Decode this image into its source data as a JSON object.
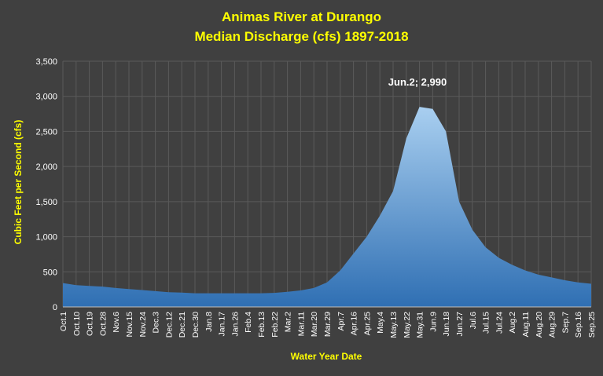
{
  "chart_data": {
    "type": "area",
    "title": "Animas River at Durango",
    "subtitle": "Median Discharge (cfs) 1897-2018",
    "xlabel": "Water Year Date",
    "ylabel": "Cubic Feet per Second (cfs)",
    "ylim": [
      0,
      3500
    ],
    "yticks": [
      "0",
      "500",
      "1,000",
      "1,500",
      "2,000",
      "2,500",
      "3,000",
      "3,500"
    ],
    "ytick_values": [
      0,
      500,
      1000,
      1500,
      2000,
      2500,
      3000,
      3500
    ],
    "xtick_labels": [
      "Oct.1",
      "Oct.10",
      "Oct.19",
      "Oct.28",
      "Nov.6",
      "Nov.15",
      "Nov.24",
      "Dec.3",
      "Dec.12",
      "Dec.21",
      "Dec.30",
      "Jan.8",
      "Jan.17",
      "Jan.26",
      "Feb.4",
      "Feb.13",
      "Feb.22",
      "Mar.2",
      "Mar.11",
      "Mar.20",
      "Mar.29",
      "Apr.7",
      "Apr.16",
      "Apr.25",
      "May.4",
      "May.13",
      "May.22",
      "May.31",
      "Jun.9",
      "Jun.18",
      "Jun.27",
      "Jul.6",
      "Jul.15",
      "Jul.24",
      "Aug.2",
      "Aug.11",
      "Aug.20",
      "Aug.29",
      "Sep.7",
      "Sep.16",
      "Sep.25"
    ],
    "grid": true,
    "series": [
      {
        "x": [
          "Oct.1",
          "Oct.10",
          "Oct.19",
          "Oct.28",
          "Nov.6",
          "Nov.15",
          "Nov.24",
          "Dec.3",
          "Dec.12",
          "Dec.21",
          "Dec.30",
          "Jan.8",
          "Jan.17",
          "Jan.26",
          "Feb.4",
          "Feb.13",
          "Feb.22",
          "Mar.2",
          "Mar.11",
          "Mar.20",
          "Mar.29",
          "Apr.7",
          "Apr.16",
          "Apr.25",
          "May.4",
          "May.13",
          "May.22",
          "May.31",
          "Jun.9",
          "Jun.18",
          "Jun.27",
          "Jul.6",
          "Jul.15",
          "Jul.24",
          "Aug.2",
          "Aug.11",
          "Aug.20",
          "Aug.29",
          "Sep.7",
          "Sep.16",
          "Sep.25"
        ],
        "values": [
          340,
          310,
          300,
          290,
          270,
          255,
          240,
          225,
          210,
          205,
          195,
          195,
          195,
          195,
          195,
          195,
          200,
          215,
          235,
          270,
          350,
          520,
          760,
          1000,
          1300,
          1650,
          2400,
          2850,
          2820,
          2500,
          1500,
          1100,
          850,
          700,
          600,
          520,
          460,
          420,
          380,
          350,
          330
        ]
      }
    ],
    "annotation": {
      "text": "Jun.2; 2,990",
      "x": "Jun.2",
      "y": 2990
    },
    "colors": {
      "background": "#404040",
      "title": "#ffff00",
      "text": "#ffffff",
      "area_top": "#a9cff0",
      "area_bottom": "#2f6fb3",
      "grid": "#5a5a5a"
    }
  }
}
